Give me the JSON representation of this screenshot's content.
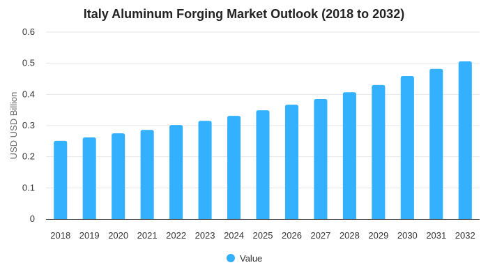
{
  "chart_data": {
    "type": "bar",
    "title": "Italy Aluminum Forging Market Outlook (2018 to 2032)",
    "xlabel": "",
    "ylabel": "USD USD Billion",
    "categories": [
      "2018",
      "2019",
      "2020",
      "2021",
      "2022",
      "2023",
      "2024",
      "2025",
      "2026",
      "2027",
      "2028",
      "2029",
      "2030",
      "2031",
      "2032"
    ],
    "series": [
      {
        "name": "Value",
        "values": [
          0.251,
          0.262,
          0.275,
          0.286,
          0.302,
          0.315,
          0.331,
          0.349,
          0.367,
          0.385,
          0.407,
          0.43,
          0.459,
          0.482,
          0.506
        ]
      }
    ],
    "ylim": [
      0,
      0.6
    ],
    "yticks": [
      "0",
      "0.1",
      "0.2",
      "0.3",
      "0.4",
      "0.5",
      "0.6"
    ],
    "grid": true,
    "legend_position": "bottom",
    "colors": {
      "bar": "#33B1FF",
      "grid": "#e6e6e6",
      "axis": "#333333"
    }
  }
}
